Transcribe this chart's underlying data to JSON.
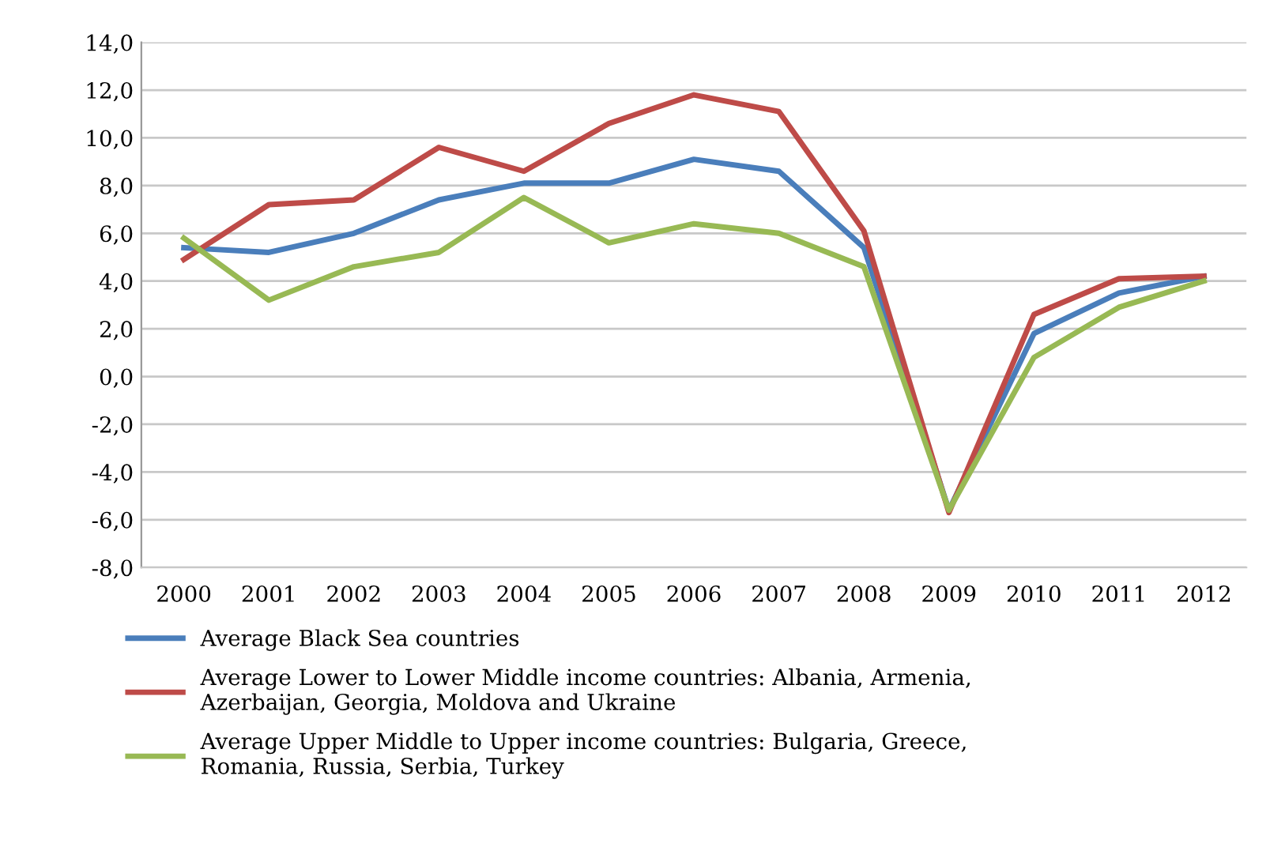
{
  "chart_data": {
    "type": "line",
    "categories": [
      "2000",
      "2001",
      "2002",
      "2003",
      "2004",
      "2005",
      "2006",
      "2007",
      "2008",
      "2009",
      "2010",
      "2011",
      "2012"
    ],
    "series": [
      {
        "name": "Average Black Sea countries",
        "color": "#4a7ebb",
        "values": [
          5.4,
          5.2,
          6.0,
          7.4,
          8.1,
          8.1,
          9.1,
          8.6,
          5.4,
          -5.6,
          1.8,
          3.5,
          4.2
        ]
      },
      {
        "name": "Average Lower to Lower Middle income countries: Albania, Armenia,\nAzerbaijan, Georgia, Moldova and Ukraine",
        "color": "#be4b48",
        "values": [
          4.9,
          7.2,
          7.4,
          9.6,
          8.6,
          10.6,
          11.8,
          11.1,
          6.1,
          -5.7,
          2.6,
          4.1,
          4.2
        ]
      },
      {
        "name": "Average Upper Middle to Upper income countries: Bulgaria, Greece,\nRomania, Russia, Serbia, Turkey",
        "color": "#98b954",
        "values": [
          5.8,
          3.2,
          4.6,
          5.2,
          7.5,
          5.6,
          6.4,
          6.0,
          4.6,
          -5.6,
          0.8,
          2.9,
          4.0
        ]
      }
    ],
    "ylim": [
      -8,
      14
    ],
    "yticks": [
      {
        "value": -8,
        "label": "-8,0"
      },
      {
        "value": -6,
        "label": "-6,0"
      },
      {
        "value": -4,
        "label": "-4,0"
      },
      {
        "value": -2,
        "label": "-2,0"
      },
      {
        "value": 0,
        "label": "0,0"
      },
      {
        "value": 2,
        "label": "2,0"
      },
      {
        "value": 4,
        "label": "4,0"
      },
      {
        "value": 6,
        "label": "6,0"
      },
      {
        "value": 8,
        "label": "8,0"
      },
      {
        "value": 10,
        "label": "10,0"
      },
      {
        "value": 12,
        "label": "12,0"
      },
      {
        "value": 14,
        "label": "14,0"
      }
    ],
    "grid": "y",
    "legend": "bottom",
    "marker": "none",
    "line_style": "solid"
  }
}
